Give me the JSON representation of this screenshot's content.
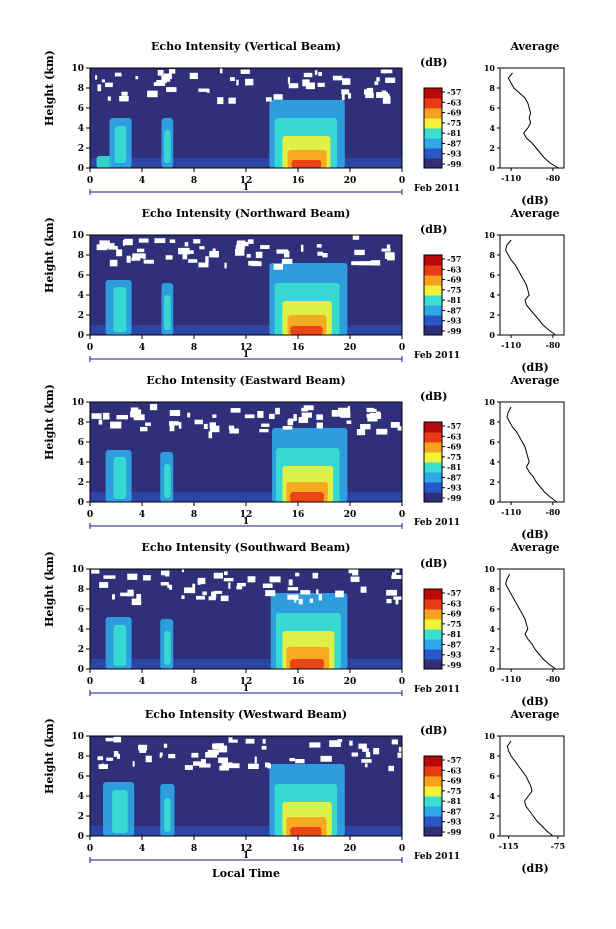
{
  "figure": {
    "date_label": "Feb 2011",
    "x_axis_label": "Local Time",
    "day_label": "1",
    "y_axis_label": "Height (km)",
    "colorbar_title": "(dB)",
    "average_title": "Average",
    "average_xlabel": "(dB)",
    "colormap": [
      "#30307a",
      "#2a57c8",
      "#2fa8e8",
      "#39e0d0",
      "#f2f23a",
      "#f7a21e",
      "#e83a14",
      "#b80a0a"
    ]
  },
  "chart_data": [
    {
      "type": "heatmap",
      "title": "Echo Intensity (Vertical Beam)",
      "ylabel": "Height (km)",
      "xlabel": "Local Time",
      "x_ticks": [
        "0",
        "4",
        "8",
        "12",
        "16",
        "20",
        "0"
      ],
      "y_ticks": [
        "0",
        "2",
        "4",
        "6",
        "8",
        "10"
      ],
      "xlim": [
        0,
        24
      ],
      "ylim": [
        0,
        10
      ],
      "colorbar": {
        "label": "(dB)",
        "ticks": [
          "-57",
          "-63",
          "-69",
          "-75",
          "-81",
          "-87",
          "-93",
          "-99"
        ]
      },
      "average": {
        "type": "line",
        "title": "Average",
        "xlabel": "(dB)",
        "x_ticks": [
          "-110",
          "-80"
        ],
        "xlim": [
          -118,
          -72
        ],
        "y_ticks": [
          "0",
          "2",
          "4",
          "6",
          "8",
          "10"
        ],
        "heights": [
          0,
          0.5,
          1,
          1.5,
          2,
          2.5,
          3,
          3.5,
          4,
          4.5,
          5,
          5.5,
          6,
          6.5,
          7,
          7.5,
          8,
          8.5,
          9,
          9.5
        ],
        "values": [
          -76,
          -82,
          -86,
          -89,
          -92,
          -95,
          -99,
          -101,
          -98,
          -96,
          -97,
          -96,
          -97,
          -98,
          -100,
          -104,
          -108,
          -110,
          -112,
          -109
        ]
      },
      "cells": [
        {
          "t0": 0.5,
          "t1": 1.7,
          "h0": 0,
          "h1": 1.2,
          "level": 3
        },
        {
          "t0": 1.5,
          "t1": 3.2,
          "h0": 0,
          "h1": 5.0,
          "level": 2
        },
        {
          "t0": 1.9,
          "t1": 2.8,
          "h0": 0.5,
          "h1": 4.2,
          "level": 3
        },
        {
          "t0": 5.5,
          "t1": 6.4,
          "h0": 0,
          "h1": 5.0,
          "level": 2
        },
        {
          "t0": 5.7,
          "t1": 6.2,
          "h0": 0.5,
          "h1": 3.8,
          "level": 3
        },
        {
          "t0": 13.8,
          "t1": 19.6,
          "h0": 0,
          "h1": 6.8,
          "level": 2
        },
        {
          "t0": 14.2,
          "t1": 19.0,
          "h0": 0,
          "h1": 5.0,
          "level": 3
        },
        {
          "t0": 14.8,
          "t1": 18.5,
          "h0": 0,
          "h1": 3.2,
          "level": 4
        },
        {
          "t0": 15.2,
          "t1": 18.2,
          "h0": 0,
          "h1": 1.8,
          "level": 5
        },
        {
          "t0": 15.5,
          "t1": 17.8,
          "h0": 0,
          "h1": 0.8,
          "level": 6
        }
      ]
    },
    {
      "type": "heatmap",
      "title": "Echo Intensity (Northward Beam)",
      "ylabel": "Height (km)",
      "xlabel": "Local Time",
      "x_ticks": [
        "0",
        "4",
        "8",
        "12",
        "16",
        "20",
        "0"
      ],
      "y_ticks": [
        "0",
        "2",
        "4",
        "6",
        "8",
        "10"
      ],
      "xlim": [
        0,
        24
      ],
      "ylim": [
        0,
        10
      ],
      "colorbar": {
        "label": "(dB)",
        "ticks": [
          "-57",
          "-63",
          "-69",
          "-75",
          "-81",
          "-87",
          "-93",
          "-99"
        ]
      },
      "average": {
        "type": "line",
        "title": "Average",
        "xlabel": "(dB)",
        "x_ticks": [
          "-110",
          "-80"
        ],
        "xlim": [
          -118,
          -72
        ],
        "y_ticks": [
          "0",
          "2",
          "4",
          "6",
          "8",
          "10"
        ],
        "heights": [
          0,
          0.5,
          1,
          1.5,
          2,
          2.5,
          3,
          3.5,
          4,
          4.5,
          5,
          5.5,
          6,
          6.5,
          7,
          7.5,
          8,
          8.5,
          9,
          9.5
        ],
        "values": [
          -78,
          -83,
          -87,
          -90,
          -93,
          -96,
          -99,
          -100,
          -97,
          -98,
          -99,
          -101,
          -103,
          -105,
          -107,
          -110,
          -112,
          -114,
          -113,
          -110
        ]
      },
      "cells": [
        {
          "t0": 1.2,
          "t1": 3.2,
          "h0": 0,
          "h1": 5.5,
          "level": 2
        },
        {
          "t0": 1.8,
          "t1": 2.8,
          "h0": 0.3,
          "h1": 4.8,
          "level": 3
        },
        {
          "t0": 5.5,
          "t1": 6.4,
          "h0": 0,
          "h1": 5.2,
          "level": 2
        },
        {
          "t0": 5.7,
          "t1": 6.2,
          "h0": 0.5,
          "h1": 4.0,
          "level": 3
        },
        {
          "t0": 13.8,
          "t1": 19.8,
          "h0": 0,
          "h1": 7.2,
          "level": 2
        },
        {
          "t0": 14.2,
          "t1": 19.2,
          "h0": 0,
          "h1": 5.2,
          "level": 3
        },
        {
          "t0": 14.8,
          "t1": 18.6,
          "h0": 0,
          "h1": 3.4,
          "level": 4
        },
        {
          "t0": 15.2,
          "t1": 18.2,
          "h0": 0,
          "h1": 2.0,
          "level": 5
        },
        {
          "t0": 15.4,
          "t1": 17.9,
          "h0": 0,
          "h1": 0.9,
          "level": 6
        }
      ]
    },
    {
      "type": "heatmap",
      "title": "Echo Intensity (Eastward Beam)",
      "ylabel": "Height (km)",
      "xlabel": "Local Time",
      "x_ticks": [
        "0",
        "4",
        "8",
        "12",
        "16",
        "20",
        "0"
      ],
      "y_ticks": [
        "0",
        "2",
        "4",
        "6",
        "8",
        "10"
      ],
      "xlim": [
        0,
        24
      ],
      "ylim": [
        0,
        10
      ],
      "colorbar": {
        "label": "(dB)",
        "ticks": [
          "-57",
          "-63",
          "-69",
          "-75",
          "-81",
          "-87",
          "-93",
          "-99"
        ]
      },
      "average": {
        "type": "line",
        "title": "Average",
        "xlabel": "(dB)",
        "x_ticks": [
          "-110",
          "-80"
        ],
        "xlim": [
          -118,
          -72
        ],
        "y_ticks": [
          "0",
          "2",
          "4",
          "6",
          "8",
          "10"
        ],
        "heights": [
          0,
          0.5,
          1,
          1.5,
          2,
          2.5,
          3,
          3.5,
          4,
          4.5,
          5,
          5.5,
          6,
          6.5,
          7,
          7.5,
          8,
          8.5,
          9,
          9.5
        ],
        "values": [
          -77,
          -82,
          -86,
          -89,
          -92,
          -94,
          -97,
          -99,
          -97,
          -98,
          -99,
          -100,
          -102,
          -104,
          -106,
          -109,
          -111,
          -113,
          -112,
          -110
        ]
      },
      "cells": [
        {
          "t0": 1.2,
          "t1": 3.2,
          "h0": 0,
          "h1": 5.2,
          "level": 2
        },
        {
          "t0": 1.8,
          "t1": 2.8,
          "h0": 0.3,
          "h1": 4.5,
          "level": 3
        },
        {
          "t0": 5.4,
          "t1": 6.4,
          "h0": 0,
          "h1": 5.0,
          "level": 2
        },
        {
          "t0": 5.7,
          "t1": 6.2,
          "h0": 0.4,
          "h1": 3.8,
          "level": 3
        },
        {
          "t0": 14.0,
          "t1": 19.8,
          "h0": 0,
          "h1": 7.4,
          "level": 2
        },
        {
          "t0": 14.3,
          "t1": 19.2,
          "h0": 0,
          "h1": 5.4,
          "level": 3
        },
        {
          "t0": 14.8,
          "t1": 18.7,
          "h0": 0,
          "h1": 3.6,
          "level": 4
        },
        {
          "t0": 15.1,
          "t1": 18.3,
          "h0": 0,
          "h1": 2.0,
          "level": 5
        },
        {
          "t0": 15.4,
          "t1": 18.0,
          "h0": 0,
          "h1": 1.0,
          "level": 6
        }
      ]
    },
    {
      "type": "heatmap",
      "title": "Echo Intensity (Southward Beam)",
      "ylabel": "Height (km)",
      "xlabel": "Local Time",
      "x_ticks": [
        "0",
        "4",
        "8",
        "12",
        "16",
        "20",
        "0"
      ],
      "y_ticks": [
        "0",
        "2",
        "4",
        "6",
        "8",
        "10"
      ],
      "xlim": [
        0,
        24
      ],
      "ylim": [
        0,
        10
      ],
      "colorbar": {
        "label": "(dB)",
        "ticks": [
          "-57",
          "-63",
          "-69",
          "-75",
          "-81",
          "-87",
          "-93",
          "-99"
        ]
      },
      "average": {
        "type": "line",
        "title": "Average",
        "xlabel": "(dB)",
        "x_ticks": [
          "-110",
          "-80"
        ],
        "xlim": [
          -118,
          -72
        ],
        "y_ticks": [
          "0",
          "2",
          "4",
          "6",
          "8",
          "10"
        ],
        "heights": [
          0,
          0.5,
          1,
          1.5,
          2,
          2.5,
          3,
          3.5,
          4,
          4.5,
          5,
          5.5,
          6,
          6.5,
          7,
          7.5,
          8,
          8.5,
          9,
          9.5
        ],
        "values": [
          -78,
          -83,
          -87,
          -90,
          -93,
          -95,
          -98,
          -100,
          -98,
          -99,
          -100,
          -102,
          -104,
          -106,
          -108,
          -110,
          -112,
          -114,
          -113,
          -111
        ]
      },
      "cells": [
        {
          "t0": 1.2,
          "t1": 3.2,
          "h0": 0,
          "h1": 5.2,
          "level": 2
        },
        {
          "t0": 1.8,
          "t1": 2.8,
          "h0": 0.3,
          "h1": 4.4,
          "level": 3
        },
        {
          "t0": 5.4,
          "t1": 6.4,
          "h0": 0,
          "h1": 5.0,
          "level": 2
        },
        {
          "t0": 5.7,
          "t1": 6.2,
          "h0": 0.4,
          "h1": 3.8,
          "level": 3
        },
        {
          "t0": 13.9,
          "t1": 19.8,
          "h0": 0,
          "h1": 7.6,
          "level": 2
        },
        {
          "t0": 14.3,
          "t1": 19.3,
          "h0": 0,
          "h1": 5.6,
          "level": 3
        },
        {
          "t0": 14.8,
          "t1": 18.8,
          "h0": 0,
          "h1": 3.8,
          "level": 4
        },
        {
          "t0": 15.1,
          "t1": 18.4,
          "h0": 0,
          "h1": 2.2,
          "level": 5
        },
        {
          "t0": 15.4,
          "t1": 18.0,
          "h0": 0,
          "h1": 1.0,
          "level": 6
        }
      ]
    },
    {
      "type": "heatmap",
      "title": "Echo Intensity (Westward Beam)",
      "ylabel": "Height (km)",
      "xlabel": "Local Time",
      "x_ticks": [
        "0",
        "4",
        "8",
        "12",
        "16",
        "20",
        "0"
      ],
      "y_ticks": [
        "0",
        "2",
        "4",
        "6",
        "8",
        "10"
      ],
      "xlim": [
        0,
        24
      ],
      "ylim": [
        0,
        10
      ],
      "colorbar": {
        "label": "(dB)",
        "ticks": [
          "-57",
          "-63",
          "-69",
          "-75",
          "-81",
          "-87",
          "-93",
          "-99"
        ]
      },
      "average": {
        "type": "line",
        "title": "Average",
        "xlabel": "(dB)",
        "x_ticks": [
          "-115",
          "-75"
        ],
        "xlim": [
          -122,
          -70
        ],
        "y_ticks": [
          "0",
          "2",
          "4",
          "6",
          "8",
          "10"
        ],
        "heights": [
          0,
          0.5,
          1,
          1.5,
          2,
          2.5,
          3,
          3.5,
          4,
          4.5,
          5,
          5.5,
          6,
          6.5,
          7,
          7.5,
          8,
          8.5,
          9,
          9.5
        ],
        "values": [
          -79,
          -84,
          -88,
          -92,
          -95,
          -98,
          -101,
          -102,
          -99,
          -96,
          -97,
          -99,
          -101,
          -104,
          -107,
          -110,
          -113,
          -115,
          -116,
          -113
        ]
      },
      "cells": [
        {
          "t0": 1.0,
          "t1": 3.4,
          "h0": 0,
          "h1": 5.4,
          "level": 2
        },
        {
          "t0": 1.7,
          "t1": 2.9,
          "h0": 0.3,
          "h1": 4.6,
          "level": 3
        },
        {
          "t0": 5.4,
          "t1": 6.5,
          "h0": 0,
          "h1": 5.2,
          "level": 2
        },
        {
          "t0": 5.7,
          "t1": 6.2,
          "h0": 0.4,
          "h1": 3.8,
          "level": 3
        },
        {
          "t0": 13.8,
          "t1": 19.6,
          "h0": 0,
          "h1": 7.2,
          "level": 2
        },
        {
          "t0": 14.2,
          "t1": 19.0,
          "h0": 0,
          "h1": 5.2,
          "level": 3
        },
        {
          "t0": 14.8,
          "t1": 18.6,
          "h0": 0,
          "h1": 3.4,
          "level": 4
        },
        {
          "t0": 15.1,
          "t1": 18.2,
          "h0": 0,
          "h1": 1.9,
          "level": 5
        },
        {
          "t0": 15.4,
          "t1": 17.8,
          "h0": 0,
          "h1": 0.9,
          "level": 6
        }
      ]
    }
  ]
}
